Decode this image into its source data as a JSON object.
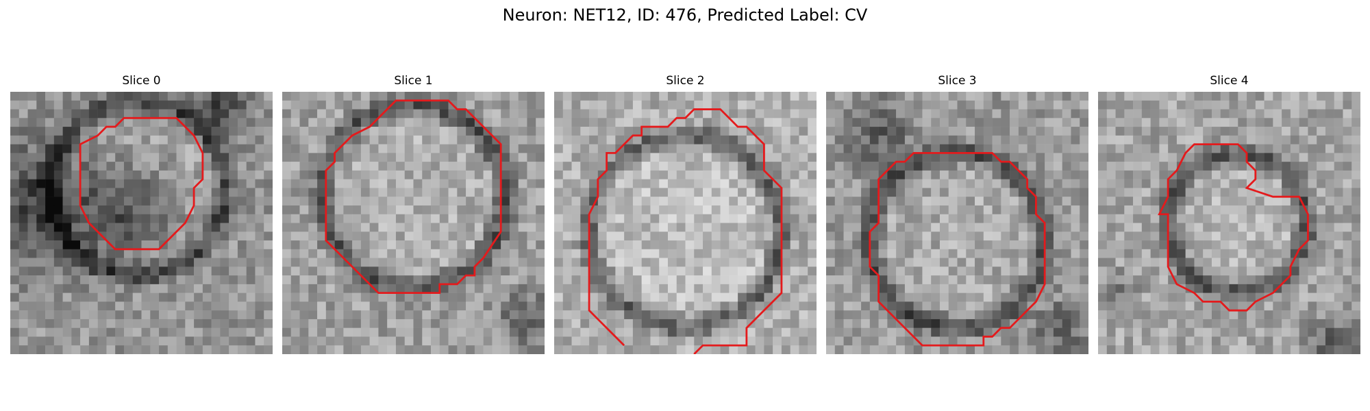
{
  "figure": {
    "title": "Neuron: NET12, ID: 476, Predicted Label: CV"
  },
  "panels": [
    {
      "title": "Slice 0"
    },
    {
      "title": "Slice 1"
    },
    {
      "title": "Slice 2"
    },
    {
      "title": "Slice 3"
    },
    {
      "title": "Slice 4"
    }
  ],
  "colors": {
    "contour": "#e41a1c",
    "colormap": "grayscale"
  }
}
